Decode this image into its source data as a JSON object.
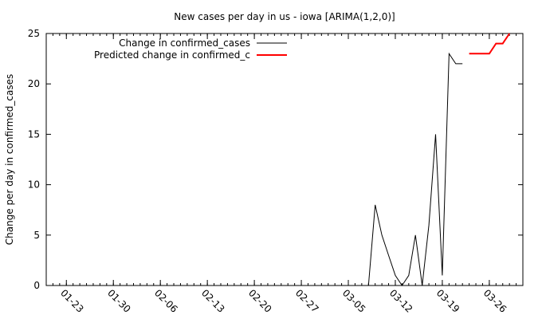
{
  "chart_data": {
    "type": "line",
    "title": "New cases per day in us - iowa [ARIMA(1,2,0)]",
    "xlabel": "",
    "ylabel": "Change per day in confirmed_cases",
    "ylim": [
      0,
      25
    ],
    "yticks": [
      0,
      5,
      10,
      15,
      20,
      25
    ],
    "xlim": [
      "2020-01-20",
      "2020-03-31"
    ],
    "xticks": [
      {
        "date": "2020-01-23",
        "label": "01-23"
      },
      {
        "date": "2020-01-30",
        "label": "01-30"
      },
      {
        "date": "2020-02-06",
        "label": "02-06"
      },
      {
        "date": "2020-02-13",
        "label": "02-13"
      },
      {
        "date": "2020-02-20",
        "label": "02-20"
      },
      {
        "date": "2020-02-27",
        "label": "02-27"
      },
      {
        "date": "2020-03-05",
        "label": "03-05"
      },
      {
        "date": "2020-03-12",
        "label": "03-12"
      },
      {
        "date": "2020-03-19",
        "label": "03-19"
      },
      {
        "date": "2020-03-26",
        "label": "03-26"
      }
    ],
    "grid": false,
    "legend_position": "top-left",
    "series": [
      {
        "name": "Change in confirmed_cases",
        "color": "#000000",
        "x": [
          "2020-03-08",
          "2020-03-09",
          "2020-03-10",
          "2020-03-11",
          "2020-03-12",
          "2020-03-13",
          "2020-03-14",
          "2020-03-15",
          "2020-03-16",
          "2020-03-17",
          "2020-03-18",
          "2020-03-19",
          "2020-03-20",
          "2020-03-21",
          "2020-03-22"
        ],
        "y": [
          0,
          8,
          5,
          3,
          1,
          0,
          1,
          5,
          0,
          6,
          15,
          1,
          23,
          22,
          22
        ]
      },
      {
        "name": "Predicted change in confirmed_c",
        "color": "#ff0000",
        "x": [
          "2020-03-23",
          "2020-03-24",
          "2020-03-25",
          "2020-03-26",
          "2020-03-27",
          "2020-03-28",
          "2020-03-29"
        ],
        "y": [
          23,
          23,
          23,
          23,
          24,
          24,
          25
        ]
      }
    ]
  }
}
